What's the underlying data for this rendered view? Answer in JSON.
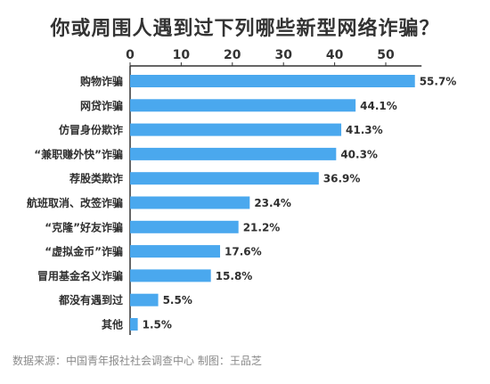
{
  "title": "你或周围人遇到过下列哪些新型网络诈骗？",
  "source": "数据来源：中国青年报社社会调查中心 制图：王品芝",
  "colors": {
    "bar": "#4aa8ee",
    "axis": "#333333",
    "label": "#2f2f2f"
  },
  "chart_data": {
    "type": "bar",
    "orientation": "horizontal",
    "categories": [
      "购物诈骗",
      "网贷诈骗",
      "仿冒身份欺诈",
      "“兼职赚外快”诈骗",
      "荐股类欺诈",
      "航班取消、改签诈骗",
      "“克隆”好友诈骗",
      "“虚拟金币”诈骗",
      "冒用基金名义诈骗",
      "都没有遇到过",
      "其他"
    ],
    "values": [
      55.7,
      44.1,
      41.3,
      40.3,
      36.9,
      23.4,
      21.2,
      17.6,
      15.8,
      5.5,
      1.5
    ],
    "value_labels": [
      "55.7%",
      "44.1%",
      "41.3%",
      "40.3%",
      "36.9%",
      "23.4%",
      "21.2%",
      "17.6%",
      "15.8%",
      "5.5%",
      "1.5%"
    ],
    "xticks": [
      0,
      10,
      20,
      30,
      40,
      50
    ],
    "xlim": [
      0,
      57
    ],
    "xaxis_position": "top",
    "grid": false
  }
}
